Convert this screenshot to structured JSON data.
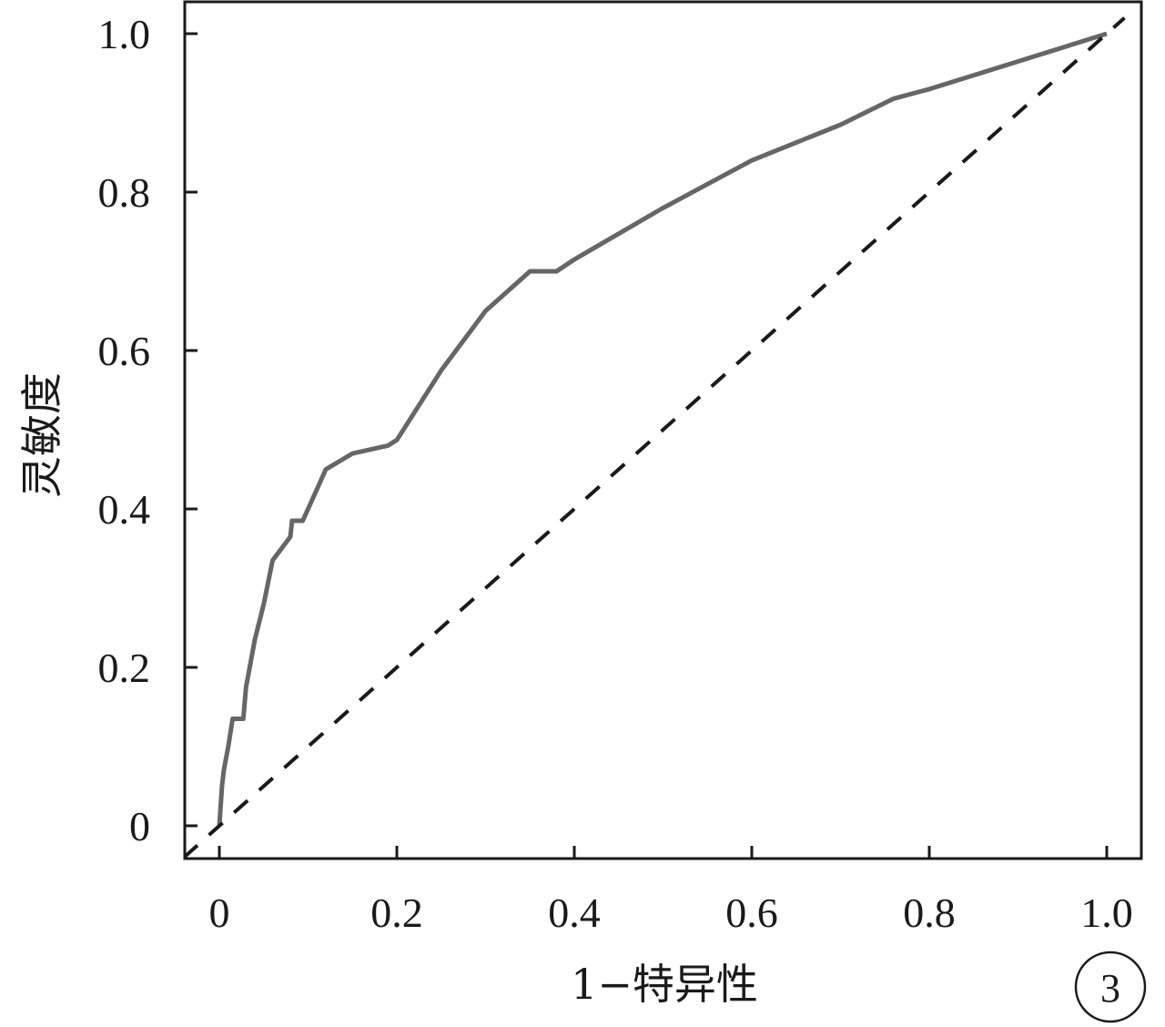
{
  "chart_data": {
    "type": "line",
    "xlabel": "1−特异性",
    "ylabel": "灵敏度",
    "panel_label": "3",
    "xlim": [
      -0.04,
      1.04
    ],
    "ylim": [
      -0.04,
      1.04
    ],
    "x_ticks": [
      0,
      0.2,
      0.4,
      0.6,
      0.8,
      1.0
    ],
    "x_tick_labels": [
      "0",
      "0.2",
      "0.4",
      "0.6",
      "0.8",
      "1.0"
    ],
    "y_ticks": [
      0,
      0.2,
      0.4,
      0.6,
      0.8,
      1.0
    ],
    "y_tick_labels": [
      "0",
      "0.2",
      "0.4",
      "0.6",
      "0.8",
      "1.0"
    ],
    "grid": false,
    "series": [
      {
        "style": "solid",
        "color": "#666666",
        "x": [
          0.0,
          0.003,
          0.005,
          0.01,
          0.015,
          0.02,
          0.022,
          0.027,
          0.03,
          0.04,
          0.05,
          0.06,
          0.07,
          0.08,
          0.082,
          0.094,
          0.1,
          0.12,
          0.15,
          0.19,
          0.2,
          0.25,
          0.3,
          0.35,
          0.355,
          0.38,
          0.4,
          0.5,
          0.6,
          0.7,
          0.76,
          0.8,
          0.9,
          1.0
        ],
        "y": [
          0.0,
          0.05,
          0.07,
          0.1,
          0.135,
          0.135,
          0.135,
          0.135,
          0.175,
          0.235,
          0.28,
          0.335,
          0.35,
          0.365,
          0.385,
          0.385,
          0.4,
          0.45,
          0.47,
          0.48,
          0.487,
          0.575,
          0.65,
          0.7,
          0.7,
          0.7,
          0.715,
          0.78,
          0.84,
          0.885,
          0.918,
          0.93,
          0.965,
          1.0
        ]
      },
      {
        "style": "dashed",
        "color": "#1a1a1a",
        "x": [
          -0.04,
          1.02
        ],
        "y": [
          -0.04,
          1.02
        ]
      }
    ]
  }
}
